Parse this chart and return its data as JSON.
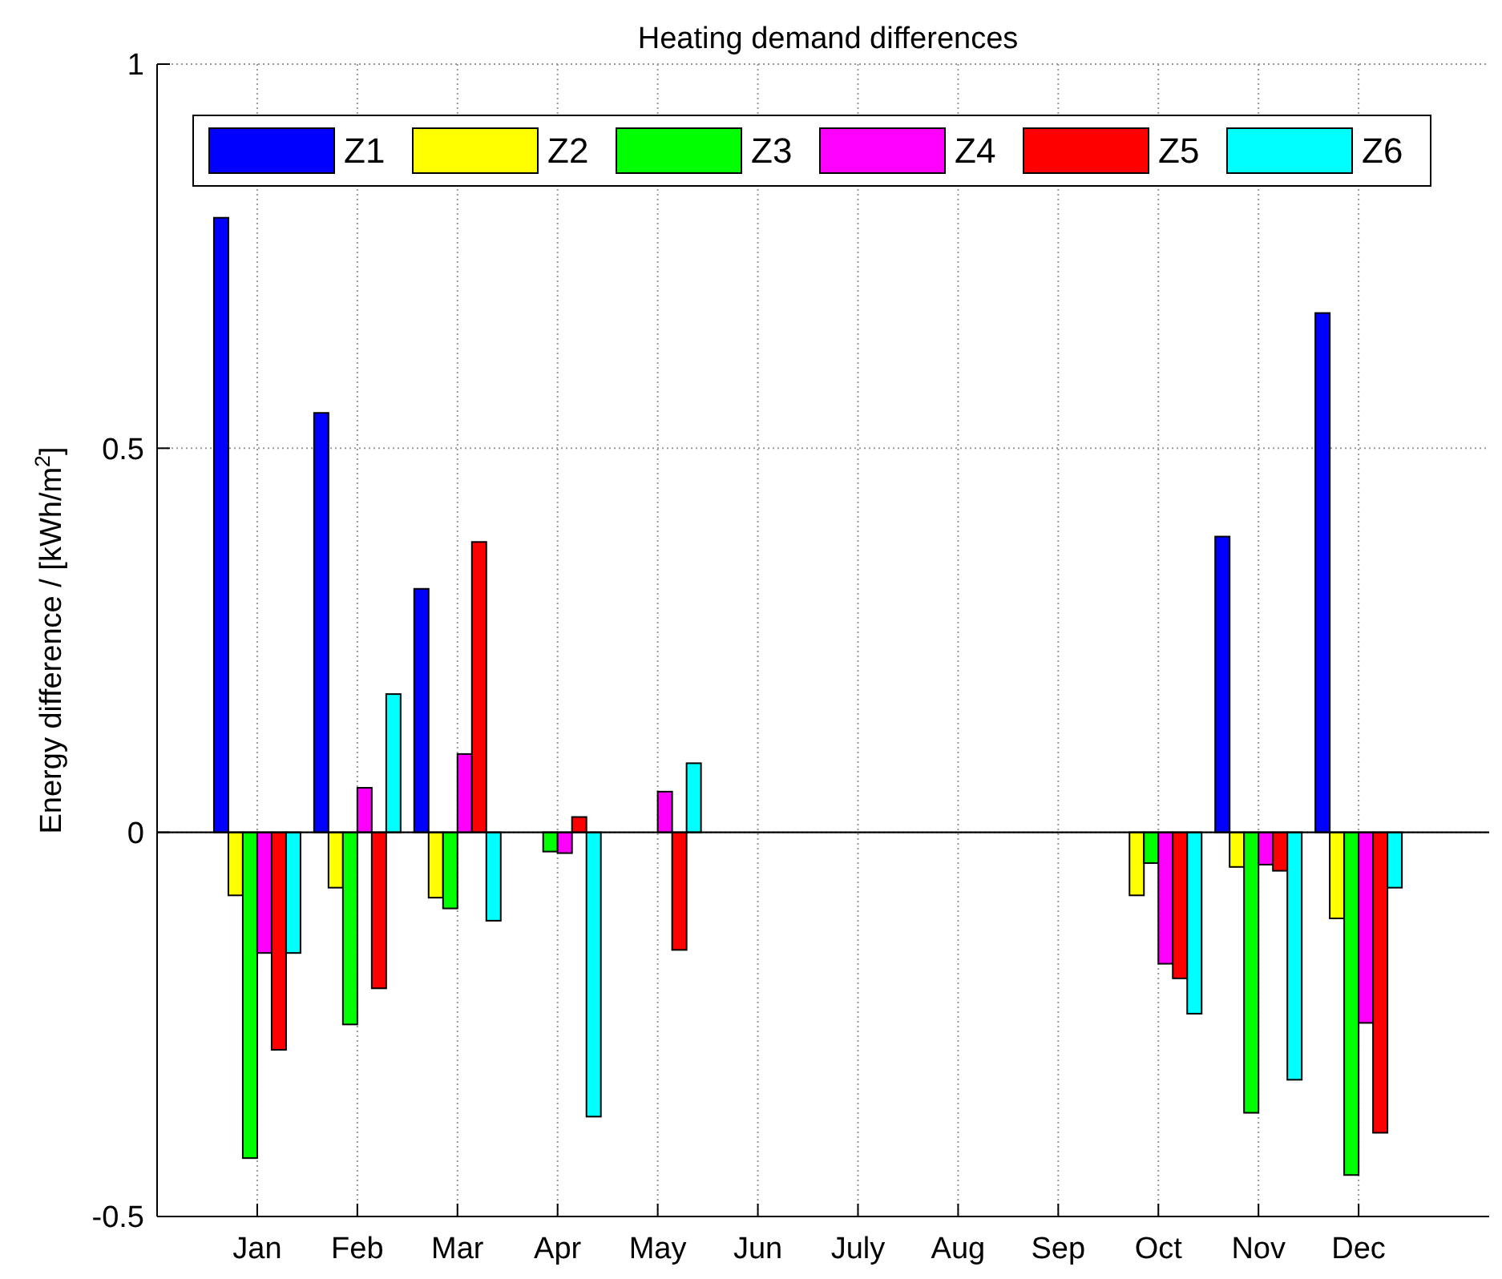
{
  "chart_data": {
    "type": "bar",
    "title": "Heating demand differences",
    "ylabel": "Energy difference / [kWh/m$^{2}$]",
    "categories": [
      "Jan",
      "Feb",
      "Mar",
      "Apr",
      "May",
      "Jun",
      "July",
      "Aug",
      "Sep",
      "Oct",
      "Nov",
      "Dec"
    ],
    "series": [
      {
        "name": "Z1",
        "color": "#0000ff",
        "values": [
          0.8,
          0.546,
          0.317,
          0,
          0,
          0,
          0,
          0,
          0,
          0,
          0.385,
          0.676
        ]
      },
      {
        "name": "Z2",
        "color": "#ffff00",
        "values": [
          -0.082,
          -0.072,
          -0.085,
          0,
          0,
          0,
          0,
          0,
          0,
          -0.082,
          -0.045,
          -0.112
        ]
      },
      {
        "name": "Z3",
        "color": "#00ff00",
        "values": [
          -0.424,
          -0.25,
          -0.099,
          -0.025,
          0,
          0,
          0,
          0,
          0,
          -0.04,
          -0.365,
          -0.446
        ]
      },
      {
        "name": "Z4",
        "color": "#ff00ff",
        "values": [
          -0.157,
          0.058,
          0.102,
          -0.027,
          0.053,
          0,
          0,
          0,
          0,
          -0.171,
          -0.042,
          -0.248
        ]
      },
      {
        "name": "Z5",
        "color": "#ff0000",
        "values": [
          -0.283,
          -0.203,
          0.378,
          0.02,
          -0.153,
          0,
          0,
          0,
          0,
          -0.19,
          -0.05,
          -0.391
        ]
      },
      {
        "name": "Z6",
        "color": "#00ffff",
        "values": [
          -0.157,
          0.18,
          -0.115,
          -0.37,
          0.09,
          0,
          0,
          0,
          0,
          -0.236,
          -0.322,
          -0.072
        ]
      }
    ],
    "ylim": [
      -0.5,
      1
    ],
    "yticks": [
      -0.5,
      0,
      0.5,
      1
    ],
    "grid": true,
    "legend": "top"
  }
}
